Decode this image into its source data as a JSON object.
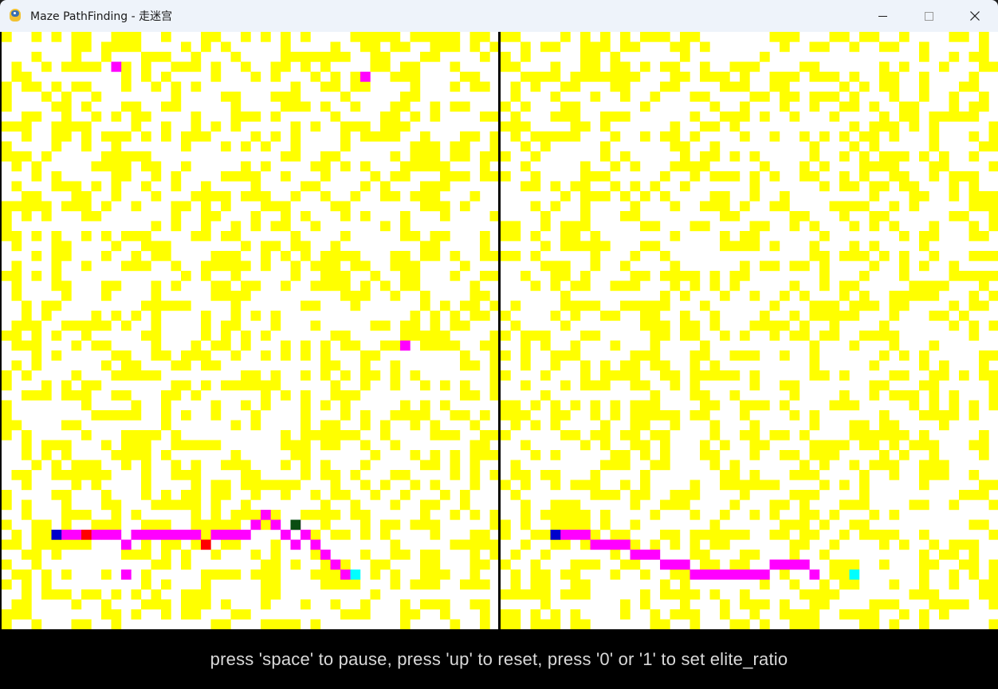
{
  "window": {
    "title": "Maze PathFinding - 走迷宫",
    "icon": "python-snake-icon"
  },
  "controls": {
    "minimize_icon": "minimize-icon",
    "maximize_icon": "maximize-icon",
    "close_icon": "close-icon"
  },
  "colors": {
    "background": "#ffffff",
    "wall": "#ffff00",
    "path": "#ff00ff",
    "start": "#0000cc",
    "goal": "#00ffff",
    "red_marker": "#ff0000",
    "dark_marker": "#0b4d12",
    "divider": "#000000"
  },
  "maze": {
    "cols": 50,
    "rows": 60,
    "left": {
      "walls_seed": 17,
      "start": [
        5,
        50
      ],
      "goal": [
        35,
        54
      ],
      "path": [
        [
          6,
          50
        ],
        [
          7,
          50
        ],
        [
          9,
          50
        ],
        [
          10,
          50
        ],
        [
          11,
          50
        ],
        [
          12,
          54
        ],
        [
          12,
          51
        ],
        [
          13,
          50
        ],
        [
          14,
          50
        ],
        [
          15,
          50
        ],
        [
          16,
          50
        ],
        [
          17,
          50
        ],
        [
          18,
          50
        ],
        [
          19,
          50
        ],
        [
          21,
          50
        ],
        [
          22,
          50
        ],
        [
          23,
          50
        ],
        [
          24,
          50
        ],
        [
          25,
          49
        ],
        [
          26,
          48
        ],
        [
          27,
          49
        ],
        [
          28,
          50
        ],
        [
          29,
          51
        ],
        [
          29,
          49
        ],
        [
          30,
          50
        ],
        [
          31,
          51
        ],
        [
          32,
          52
        ],
        [
          33,
          53
        ],
        [
          34,
          54
        ],
        [
          11,
          3
        ],
        [
          36,
          4
        ],
        [
          40,
          31
        ]
      ],
      "red_markers": [
        [
          8,
          50
        ],
        [
          20,
          51
        ]
      ],
      "dark_markers": [
        [
          29,
          49
        ]
      ]
    },
    "right": {
      "walls_seed": 23,
      "start": [
        5,
        50
      ],
      "goal": [
        35,
        54
      ],
      "path": [
        [
          6,
          50
        ],
        [
          7,
          50
        ],
        [
          8,
          50
        ],
        [
          9,
          51
        ],
        [
          10,
          51
        ],
        [
          11,
          51
        ],
        [
          12,
          51
        ],
        [
          13,
          52
        ],
        [
          14,
          52
        ],
        [
          15,
          52
        ],
        [
          16,
          53
        ],
        [
          17,
          53
        ],
        [
          18,
          53
        ],
        [
          19,
          54
        ],
        [
          20,
          54
        ],
        [
          21,
          54
        ],
        [
          22,
          54
        ],
        [
          23,
          54
        ],
        [
          24,
          54
        ],
        [
          25,
          54
        ],
        [
          26,
          54
        ],
        [
          27,
          53
        ],
        [
          28,
          53
        ],
        [
          29,
          53
        ],
        [
          30,
          53
        ],
        [
          31,
          54
        ]
      ]
    }
  },
  "footer": {
    "hint": "press 'space' to pause, press 'up' to reset, press '0' or '1' to set elite_ratio"
  }
}
